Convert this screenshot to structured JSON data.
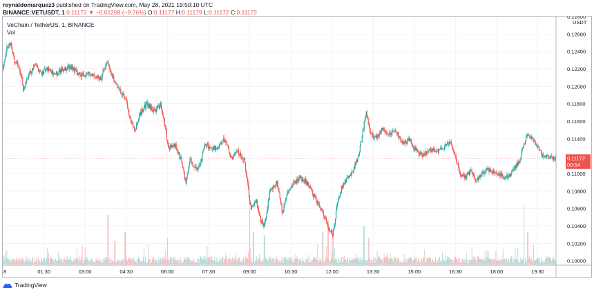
{
  "header": {
    "publisher": "reynaldomarquez3",
    "published_text": " published on TradingView.com, May 28, 2021 19:50:10 UTC",
    "symbol": "BINANCE:VETUSDT, 1",
    "last": "0.11172",
    "change": "−0.01208 (−9.76%)",
    "o_label": "O:",
    "o_value": "0.11177",
    "h_label": "H:",
    "h_value": "0.11179",
    "l_label": "L:",
    "l_value": "0.11172",
    "c_label": "C:",
    "c_value": "0.11172"
  },
  "legend": {
    "title": "VeChain / TetherUS, 1, BINANCE",
    "vol": "Vol"
  },
  "footer": {
    "brand": "TradingView"
  },
  "colors": {
    "up": "#26a69a",
    "down": "#ef5350",
    "grid": "#f0f3fa",
    "axis_text": "#131722",
    "price_tag": "#ef5350"
  },
  "chart_data": {
    "type": "candlestick",
    "title": "VeChain / TetherUS, 1, BINANCE",
    "y_unit": "USDT",
    "ylim": [
      0.0995,
      0.128
    ],
    "y_ticks": [
      "0.12800",
      "0.12600",
      "0.12400",
      "0.12200",
      "0.12000",
      "0.11800",
      "0.11600",
      "0.11400",
      "0.11200",
      "0.11000",
      "0.10800",
      "0.10600",
      "0.10400",
      "0.10200",
      "0.10000"
    ],
    "x_ticks": [
      {
        "label": "8",
        "t": 0
      },
      {
        "label": "01:30",
        "t": 90
      },
      {
        "label": "03:00",
        "t": 180
      },
      {
        "label": "04:30",
        "t": 270
      },
      {
        "label": "06:00",
        "t": 360
      },
      {
        "label": "07:30",
        "t": 450
      },
      {
        "label": "09:00",
        "t": 540
      },
      {
        "label": "10:30",
        "t": 630
      },
      {
        "label": "12:00",
        "t": 720
      },
      {
        "label": "13:30",
        "t": 810
      },
      {
        "label": "15:00",
        "t": 900
      },
      {
        "label": "16:30",
        "t": 990
      },
      {
        "label": "18:00",
        "t": 1080
      },
      {
        "label": "19:30",
        "t": 1170
      }
    ],
    "x_range_minutes": [
      0,
      1210
    ],
    "grid": true,
    "current_price": {
      "value": "0.11172",
      "countdown": "00:54"
    },
    "price_path": [
      [
        0,
        0.1222
      ],
      [
        10,
        0.1245
      ],
      [
        18,
        0.125
      ],
      [
        25,
        0.1228
      ],
      [
        35,
        0.1225
      ],
      [
        45,
        0.1198
      ],
      [
        55,
        0.121
      ],
      [
        70,
        0.1225
      ],
      [
        85,
        0.1215
      ],
      [
        100,
        0.122
      ],
      [
        115,
        0.1213
      ],
      [
        130,
        0.122
      ],
      [
        150,
        0.1222
      ],
      [
        170,
        0.1212
      ],
      [
        195,
        0.1215
      ],
      [
        215,
        0.1208
      ],
      [
        228,
        0.123
      ],
      [
        240,
        0.121
      ],
      [
        255,
        0.1195
      ],
      [
        268,
        0.1188
      ],
      [
        280,
        0.116
      ],
      [
        290,
        0.115
      ],
      [
        300,
        0.1168
      ],
      [
        315,
        0.118
      ],
      [
        330,
        0.1172
      ],
      [
        345,
        0.1178
      ],
      [
        355,
        0.1155
      ],
      [
        362,
        0.1128
      ],
      [
        375,
        0.1135
      ],
      [
        390,
        0.1115
      ],
      [
        400,
        0.109
      ],
      [
        410,
        0.1118
      ],
      [
        420,
        0.1105
      ],
      [
        432,
        0.111
      ],
      [
        442,
        0.1135
      ],
      [
        452,
        0.113
      ],
      [
        470,
        0.1128
      ],
      [
        485,
        0.114
      ],
      [
        500,
        0.1118
      ],
      [
        515,
        0.1125
      ],
      [
        528,
        0.1115
      ],
      [
        535,
        0.109
      ],
      [
        542,
        0.106
      ],
      [
        555,
        0.1068
      ],
      [
        565,
        0.1045
      ],
      [
        572,
        0.104
      ],
      [
        585,
        0.1082
      ],
      [
        600,
        0.109
      ],
      [
        612,
        0.1055
      ],
      [
        622,
        0.1078
      ],
      [
        635,
        0.1088
      ],
      [
        650,
        0.1095
      ],
      [
        665,
        0.109
      ],
      [
        680,
        0.1075
      ],
      [
        695,
        0.106
      ],
      [
        705,
        0.105
      ],
      [
        715,
        0.1035
      ],
      [
        722,
        0.103
      ],
      [
        730,
        0.106
      ],
      [
        742,
        0.1085
      ],
      [
        755,
        0.1095
      ],
      [
        768,
        0.1105
      ],
      [
        780,
        0.1125
      ],
      [
        788,
        0.115
      ],
      [
        795,
        0.117
      ],
      [
        805,
        0.1145
      ],
      [
        818,
        0.114
      ],
      [
        830,
        0.1152
      ],
      [
        845,
        0.1145
      ],
      [
        860,
        0.1148
      ],
      [
        875,
        0.1135
      ],
      [
        890,
        0.1138
      ],
      [
        905,
        0.1125
      ],
      [
        920,
        0.112
      ],
      [
        935,
        0.1128
      ],
      [
        950,
        0.1125
      ],
      [
        965,
        0.113
      ],
      [
        978,
        0.1135
      ],
      [
        985,
        0.113
      ],
      [
        992,
        0.1115
      ],
      [
        1000,
        0.11
      ],
      [
        1012,
        0.1095
      ],
      [
        1025,
        0.1105
      ],
      [
        1035,
        0.1092
      ],
      [
        1045,
        0.1098
      ],
      [
        1060,
        0.1105
      ],
      [
        1075,
        0.1102
      ],
      [
        1090,
        0.1098
      ],
      [
        1100,
        0.1095
      ],
      [
        1110,
        0.1098
      ],
      [
        1122,
        0.1108
      ],
      [
        1132,
        0.1118
      ],
      [
        1140,
        0.1135
      ],
      [
        1148,
        0.1145
      ],
      [
        1158,
        0.114
      ],
      [
        1168,
        0.1132
      ],
      [
        1178,
        0.1122
      ],
      [
        1188,
        0.112
      ],
      [
        1198,
        0.1118
      ],
      [
        1208,
        0.1117
      ]
    ],
    "volume_spikes": [
      {
        "t": 230,
        "rel": 0.85
      },
      {
        "t": 245,
        "rel": 0.4
      },
      {
        "t": 268,
        "rel": 0.55
      },
      {
        "t": 360,
        "rel": 0.45
      },
      {
        "t": 540,
        "rel": 0.95
      },
      {
        "t": 548,
        "rel": 0.55
      },
      {
        "t": 572,
        "rel": 0.5
      },
      {
        "t": 700,
        "rel": 0.55
      },
      {
        "t": 712,
        "rel": 0.75
      },
      {
        "t": 722,
        "rel": 0.6
      },
      {
        "t": 790,
        "rel": 0.65
      },
      {
        "t": 800,
        "rel": 0.45
      },
      {
        "t": 1140,
        "rel": 1.0
      },
      {
        "t": 1148,
        "rel": 0.55
      }
    ]
  }
}
